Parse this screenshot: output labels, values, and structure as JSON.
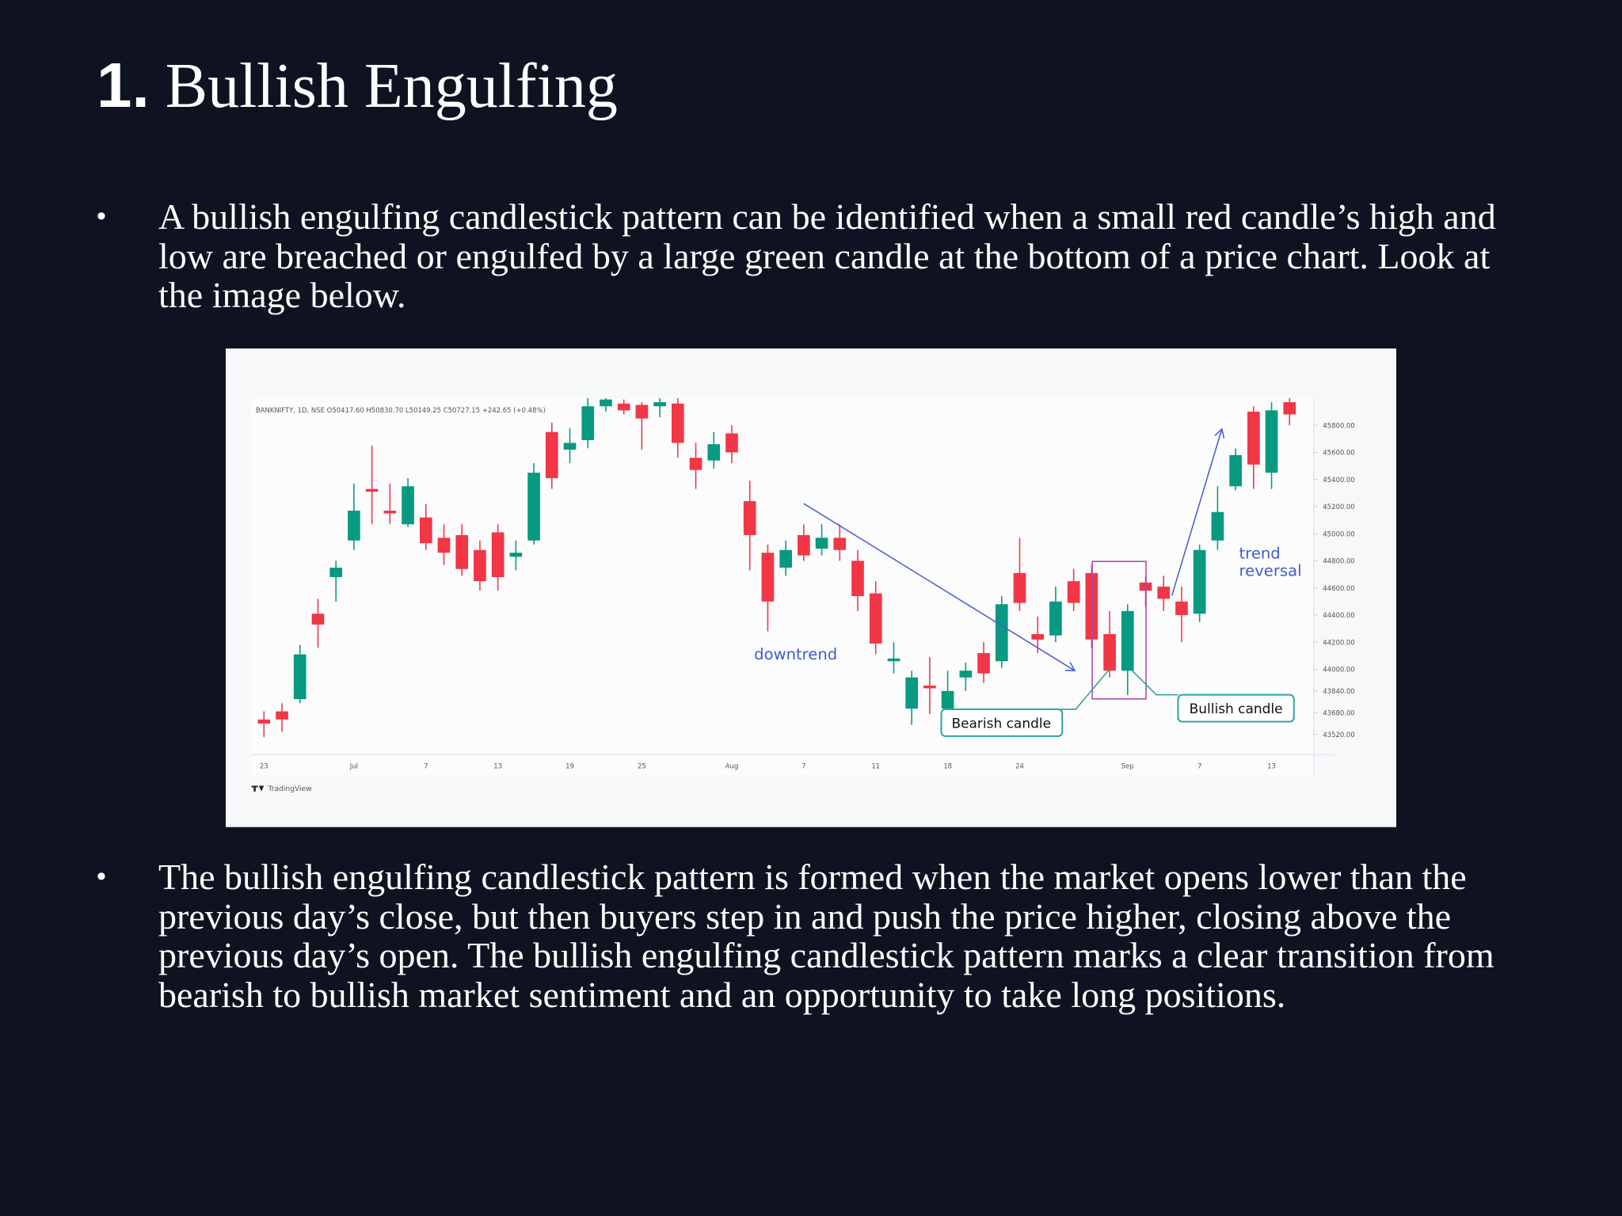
{
  "title": {
    "number": "1.",
    "text": "Bullish Engulfing"
  },
  "bullets": [
    "A bullish engulfing candlestick pattern can be identified when a small red candle’s high and low are breached or engulfed by a large green candle at the bottom of a price chart. Look at the image below.",
    "The bullish engulfing candlestick pattern is formed when the market opens lower than the previous day’s close, but then buyers step in and push the price higher, closing above the previous day’s open. The bullish engulfing candlestick pattern marks a clear transition from bearish to bullish market sentiment and an opportunity to take long positions."
  ],
  "chart_data": {
    "type": "candlestick",
    "header": "BANKNIFTY, 1D, NSE  O50417.60 H50830.70 L50149.25 C50727.15 +242.65 (+0.48%)",
    "watermark": "TradingView",
    "up_color": "#089981",
    "down_color": "#f23645",
    "categories": [
      "23",
      null,
      null,
      null,
      null,
      "Jul",
      null,
      null,
      null,
      "7",
      null,
      null,
      null,
      "13",
      null,
      null,
      null,
      "19",
      null,
      null,
      null,
      "25",
      null,
      null,
      null,
      null,
      "Aug",
      null,
      null,
      null,
      "7",
      null,
      null,
      null,
      "11",
      null,
      null,
      null,
      "18",
      null,
      null,
      null,
      "24",
      null,
      null,
      null,
      null,
      null,
      "Sep",
      null,
      null,
      null,
      "7",
      null,
      null,
      null,
      "13",
      null
    ],
    "open": [
      43630,
      43690,
      43780,
      44410,
      44680,
      44950,
      45330,
      45170,
      45070,
      45120,
      44970,
      44990,
      44880,
      45010,
      44830,
      44950,
      45750,
      45620,
      45690,
      45940,
      45960,
      45950,
      45940,
      45960,
      45560,
      45540,
      45740,
      45240,
      44860,
      44750,
      44990,
      44890,
      44970,
      44800,
      44560,
      44060,
      43710,
      43880,
      43710,
      43940,
      44120,
      44060,
      44710,
      44260,
      44250,
      44650,
      44710,
      44260,
      43990,
      44640,
      44610,
      44500,
      44410,
      44950,
      45350,
      45900,
      45450,
      45970
    ],
    "high": [
      43690,
      43750,
      44180,
      44520,
      44800,
      45370,
      45650,
      45370,
      45410,
      45220,
      45070,
      45070,
      44950,
      45070,
      44950,
      45520,
      45820,
      45780,
      46010,
      46010,
      45990,
      45970,
      46010,
      46010,
      45670,
      45750,
      45800,
      45390,
      44920,
      44950,
      45070,
      45070,
      45070,
      44880,
      44650,
      44200,
      43990,
      44090,
      43990,
      44050,
      44200,
      44540,
      44970,
      44390,
      44610,
      44740,
      44770,
      44430,
      44480,
      44690,
      44690,
      44610,
      44920,
      45350,
      45630,
      45940,
      45970,
      46010
    ],
    "low": [
      43500,
      43540,
      43750,
      44160,
      44500,
      44880,
      45070,
      45070,
      45050,
      44880,
      44770,
      44690,
      44580,
      44580,
      44730,
      44920,
      45330,
      45520,
      45630,
      45900,
      45880,
      45620,
      45860,
      45560,
      45330,
      45480,
      45520,
      44730,
      44280,
      44690,
      44800,
      44840,
      44800,
      44430,
      44110,
      43970,
      43590,
      43670,
      43670,
      43840,
      43900,
      44010,
      44430,
      44120,
      44200,
      44430,
      44160,
      43940,
      43810,
      44460,
      44430,
      44200,
      44350,
      44880,
      45320,
      45330,
      45330,
      45800
    ],
    "close": [
      43600,
      43630,
      44110,
      44330,
      44750,
      45170,
      45310,
      45150,
      45350,
      44930,
      44860,
      44740,
      44650,
      44680,
      44860,
      45450,
      45410,
      45670,
      45940,
      45990,
      45910,
      45850,
      45970,
      45670,
      45470,
      45660,
      45600,
      44990,
      44500,
      44880,
      44840,
      44970,
      44880,
      44540,
      44190,
      44080,
      43940,
      43860,
      43840,
      43990,
      43970,
      44480,
      44490,
      44220,
      44500,
      44490,
      44220,
      43990,
      44430,
      44580,
      44520,
      44400,
      44880,
      45160,
      45580,
      45510,
      45910,
      45880
    ],
    "ylim": [
      43370,
      46000
    ],
    "yticks": [
      {
        "value": 45800,
        "label": "45800.00"
      },
      {
        "value": 45600,
        "label": "45600.00"
      },
      {
        "value": 45400,
        "label": "45400.00"
      },
      {
        "value": 45200,
        "label": "45200.00"
      },
      {
        "value": 45000,
        "label": "45000.00"
      },
      {
        "value": 44800,
        "label": "44800.00"
      },
      {
        "value": 44600,
        "label": "44600.00"
      },
      {
        "value": 44400,
        "label": "44400.00"
      },
      {
        "value": 44200,
        "label": "44200.00"
      },
      {
        "value": 44000,
        "label": "44000.00"
      },
      {
        "value": 43840,
        "label": "43840.00"
      },
      {
        "value": 43680,
        "label": "43680.00"
      },
      {
        "value": 43520,
        "label": "43520.00"
      }
    ],
    "annotations": {
      "downtrend": "downtrend",
      "trend": "trend",
      "reversal": "reversal",
      "bearish": "Bearish candle",
      "bullish": "Bullish candle"
    }
  }
}
